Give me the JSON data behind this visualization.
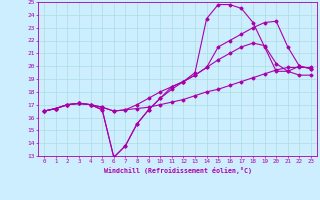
{
  "xlabel": "Windchill (Refroidissement éolien,°C)",
  "bg_color": "#cceeff",
  "grid_color": "#aadddd",
  "line_color": "#aa00aa",
  "xlim": [
    -0.5,
    23.5
  ],
  "ylim": [
    13,
    25
  ],
  "xticks": [
    0,
    1,
    2,
    3,
    4,
    5,
    6,
    7,
    8,
    9,
    10,
    11,
    12,
    13,
    14,
    15,
    16,
    17,
    18,
    19,
    20,
    21,
    22,
    23
  ],
  "yticks": [
    13,
    14,
    15,
    16,
    17,
    18,
    19,
    20,
    21,
    22,
    23,
    24,
    25
  ],
  "line1_x": [
    0,
    1,
    2,
    3,
    4,
    5,
    6,
    7,
    8,
    9,
    10,
    11,
    12,
    13,
    14,
    15,
    16,
    17,
    18,
    19,
    20,
    21,
    22,
    23
  ],
  "line1_y": [
    16.5,
    16.7,
    17.0,
    17.1,
    17.0,
    16.8,
    16.5,
    16.6,
    16.7,
    16.8,
    17.0,
    17.2,
    17.4,
    17.7,
    18.0,
    18.2,
    18.5,
    18.8,
    19.1,
    19.4,
    19.7,
    19.9,
    19.9,
    19.9
  ],
  "line2_x": [
    0,
    1,
    2,
    3,
    4,
    5,
    6,
    7,
    8,
    9,
    10,
    11,
    12,
    13,
    14,
    15,
    16,
    17,
    18,
    19,
    20,
    21,
    22,
    23
  ],
  "line2_y": [
    16.5,
    16.7,
    17.0,
    17.1,
    17.0,
    16.8,
    16.5,
    16.6,
    17.0,
    17.5,
    18.0,
    18.4,
    18.8,
    19.3,
    19.9,
    20.5,
    21.0,
    21.5,
    21.8,
    21.6,
    20.2,
    19.6,
    19.3,
    19.3
  ],
  "line3_x": [
    0,
    1,
    2,
    3,
    4,
    5,
    6,
    7,
    8,
    9,
    10,
    11,
    12,
    13,
    14,
    15,
    16,
    17,
    18,
    19,
    20,
    21,
    22,
    23
  ],
  "line3_y": [
    16.5,
    16.7,
    17.0,
    17.1,
    17.0,
    16.6,
    12.9,
    13.8,
    15.5,
    16.6,
    17.5,
    18.2,
    18.8,
    19.3,
    19.9,
    21.5,
    22.0,
    22.5,
    23.0,
    23.4,
    23.5,
    21.5,
    20.0,
    19.8
  ],
  "line4_x": [
    0,
    1,
    2,
    3,
    4,
    5,
    6,
    7,
    8,
    9,
    10,
    11,
    12,
    13,
    14,
    15,
    16,
    17,
    18,
    19,
    20,
    21,
    22,
    23
  ],
  "line4_y": [
    16.5,
    16.7,
    17.0,
    17.1,
    17.0,
    16.6,
    12.9,
    13.8,
    15.5,
    16.6,
    17.5,
    18.4,
    18.8,
    19.5,
    23.7,
    24.8,
    24.8,
    24.5,
    23.4,
    21.5,
    19.6,
    19.6,
    20.0,
    19.8
  ]
}
